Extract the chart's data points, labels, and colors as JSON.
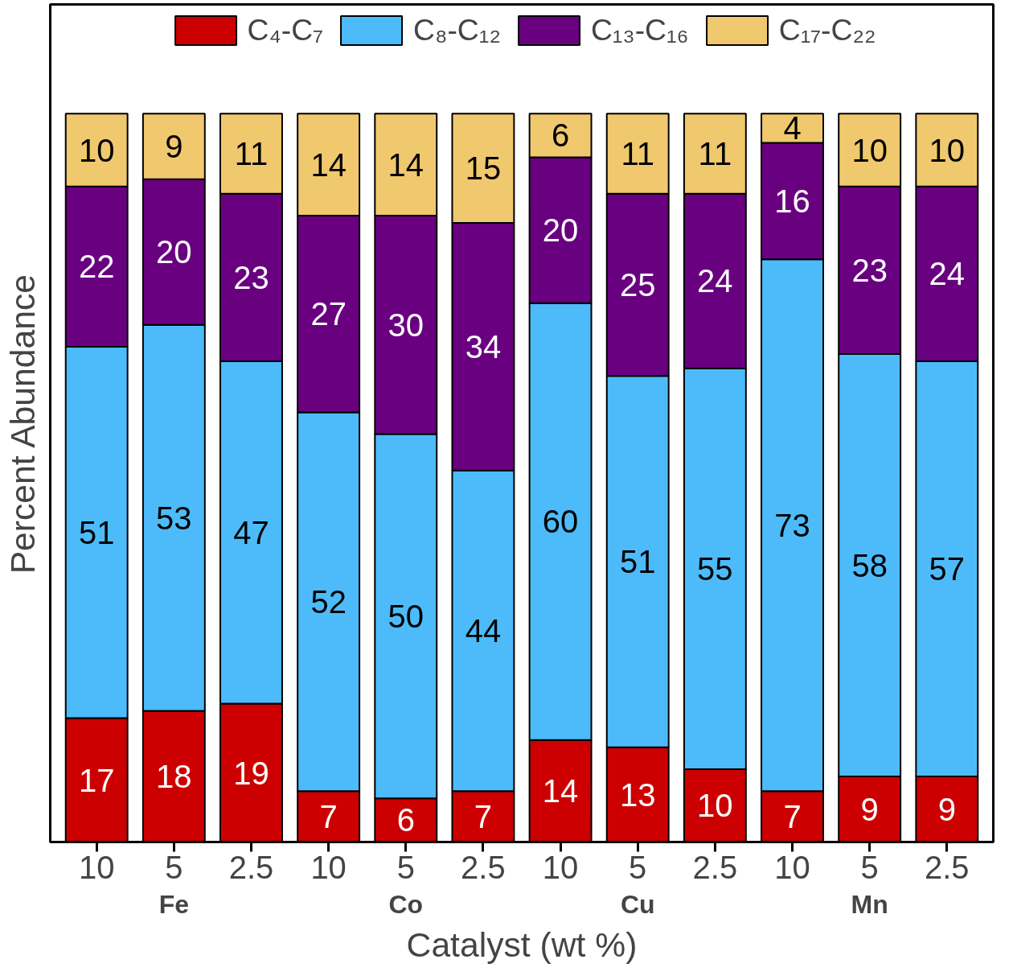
{
  "chart_data": {
    "type": "bar",
    "stacked": true,
    "xlabel": "Catalyst (wt %)",
    "ylabel": "Percent Abundance",
    "categories": [
      "10",
      "5",
      "2.5",
      "10",
      "5",
      "2.5",
      "10",
      "5",
      "2.5",
      "10",
      "5",
      "2.5"
    ],
    "series": [
      {
        "name": "C₄-C₇",
        "color": "#cc0000",
        "values": [
          17,
          18,
          19,
          7,
          6,
          7,
          14,
          13,
          10,
          7,
          9,
          9
        ]
      },
      {
        "name": "C₈-C₁₂",
        "color": "#4dbbf9",
        "values": [
          51,
          53,
          47,
          52,
          50,
          44,
          60,
          51,
          55,
          73,
          58,
          57
        ]
      },
      {
        "name": "C₁₃-C₁₆",
        "color": "#690080",
        "values": [
          22,
          20,
          23,
          27,
          30,
          34,
          20,
          25,
          24,
          16,
          23,
          24
        ]
      },
      {
        "name": "C₁₇-C₂₂",
        "color": "#f0c86e",
        "values": [
          10,
          9,
          11,
          14,
          14,
          15,
          6,
          11,
          11,
          4,
          10,
          10
        ]
      }
    ],
    "annotations": [
      "Fe",
      "Co",
      "Cu",
      "Mn"
    ],
    "ylim": [
      0,
      115
    ],
    "tick_labels": "x",
    "data_labels": true,
    "legend": "top",
    "grid": false
  }
}
